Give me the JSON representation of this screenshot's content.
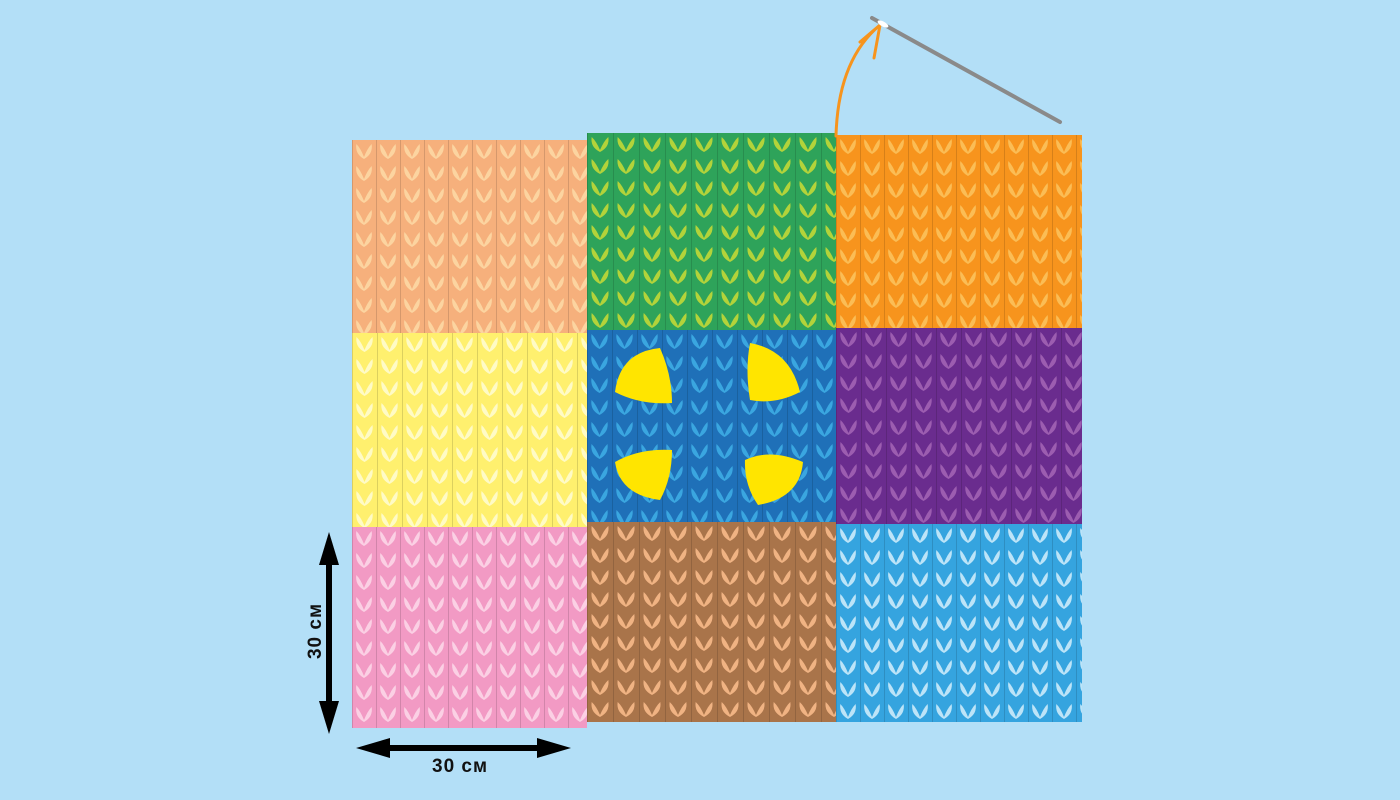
{
  "dimensions": {
    "width_label": "30 см",
    "height_label": "30 см"
  },
  "background_color": "#b3dff7",
  "squares": [
    {
      "name": "peach",
      "base": "#f6b07c",
      "stitch": "#fcd4a0"
    },
    {
      "name": "green",
      "base": "#2ea35a",
      "stitch": "#b3d33a"
    },
    {
      "name": "orange",
      "base": "#f7941d",
      "stitch": "#fbbd55"
    },
    {
      "name": "yellow",
      "base": "#fff06e",
      "stitch": "#fffbc6"
    },
    {
      "name": "blue",
      "base": "#1f70b8",
      "stitch": "#3aa6e0",
      "accent": "#ffe500"
    },
    {
      "name": "purple",
      "base": "#6a2c8e",
      "stitch": "#9c5db0"
    },
    {
      "name": "pink",
      "base": "#f29ac4",
      "stitch": "#fbd0e4"
    },
    {
      "name": "brown",
      "base": "#a9744a",
      "stitch": "#f0b383"
    },
    {
      "name": "sky",
      "base": "#35a4df",
      "stitch": "#bce4f8"
    }
  ],
  "needle_color": "#8a8a8a",
  "thread_color": "#f7941d"
}
